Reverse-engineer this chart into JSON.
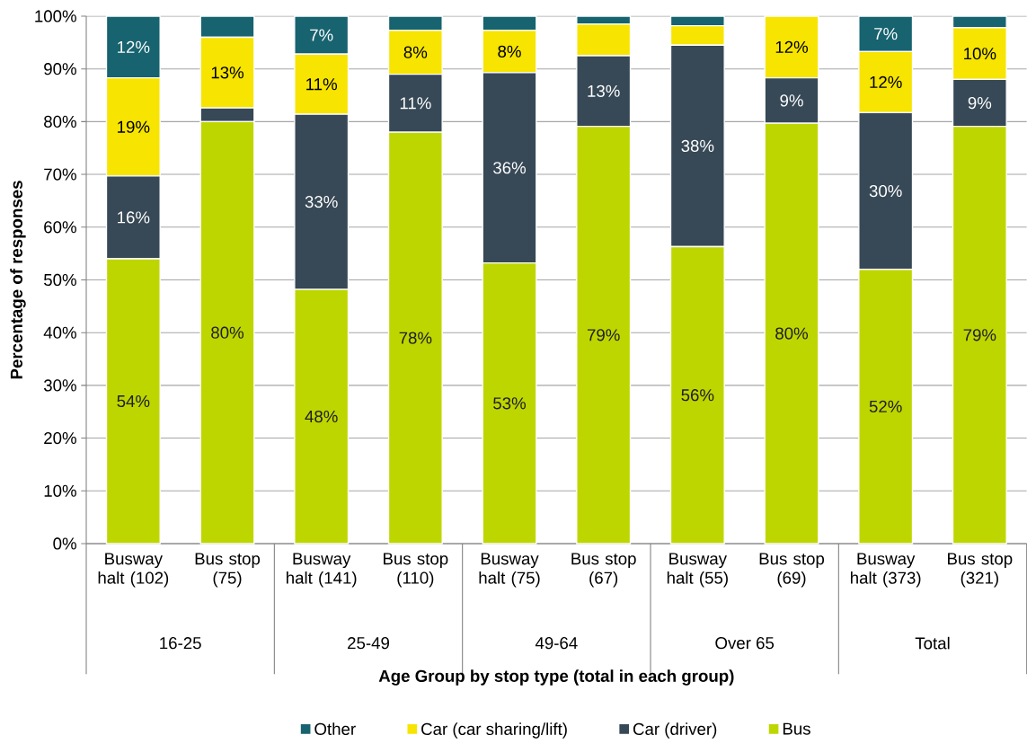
{
  "chart_data": {
    "type": "bar",
    "stacked": true,
    "xlabel": "Age Group by stop type (total in each group)",
    "ylabel": "Percentage of responses",
    "categories": [
      "Busway halt (102)",
      "Bus stop (75)",
      "Busway halt (141)",
      "Bus stop (110)",
      "Busway halt (75)",
      "Bus stop (67)",
      "Busway halt (55)",
      "Bus stop (69)",
      "Busway halt (373)",
      "Bus stop (321)"
    ],
    "annotations": [
      "16-25",
      "25-49",
      "49-64",
      "Over 65",
      "Total"
    ],
    "series": [
      {
        "name": "Bus",
        "color": "#bed600",
        "values": [
          54,
          80,
          48.2,
          78,
          53.2,
          79.1,
          56.3,
          79.7,
          52,
          79.1
        ],
        "value_labels": [
          "54%",
          "80%",
          "48%",
          "78%",
          "53%",
          "79%",
          "56%",
          "80%",
          "52%",
          "79%"
        ]
      },
      {
        "name": "Car (driver)",
        "color": "#374856",
        "values": [
          15.7,
          2.6,
          33.2,
          11,
          36.1,
          13.4,
          38.2,
          8.6,
          29.7,
          8.9
        ],
        "value_labels": [
          "16%",
          null,
          "33%",
          "11%",
          "36%",
          "13%",
          "38%",
          "9%",
          "30%",
          "9%"
        ]
      },
      {
        "name": "Car (car sharing/lift)",
        "color": "#f7e400",
        "values": [
          18.6,
          13.4,
          11.4,
          8.3,
          8,
          6,
          3.7,
          11.7,
          11.6,
          9.8
        ],
        "value_labels": [
          "19%",
          "13%",
          "11%",
          "8%",
          "8%",
          null,
          null,
          "12%",
          "12%",
          "10%"
        ]
      },
      {
        "name": "Other",
        "color": "#17636f",
        "values": [
          11.7,
          4,
          7.2,
          2.7,
          2.7,
          1.5,
          1.8,
          0,
          6.7,
          2.2
        ],
        "value_labels": [
          "12%",
          null,
          "7%",
          null,
          null,
          null,
          null,
          null,
          "7%",
          null
        ]
      }
    ],
    "ylim": [
      0,
      100
    ],
    "yticks": [
      {
        "value": 0,
        "label": "0%"
      },
      {
        "value": 10,
        "label": "10%"
      },
      {
        "value": 20,
        "label": "20%"
      },
      {
        "value": 30,
        "label": "30%"
      },
      {
        "value": 40,
        "label": "40%"
      },
      {
        "value": 50,
        "label": "50%"
      },
      {
        "value": 60,
        "label": "60%"
      },
      {
        "value": 70,
        "label": "70%"
      },
      {
        "value": 80,
        "label": "80%"
      },
      {
        "value": 90,
        "label": "90%"
      },
      {
        "value": 100,
        "label": "100%"
      }
    ],
    "grid": "y",
    "legend": "bottom"
  }
}
